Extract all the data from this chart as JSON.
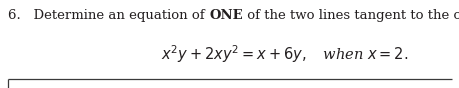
{
  "line1_pre": "6.   Determine an equation of ",
  "line1_bold": "ONE",
  "line1_post": " of the two lines tangent to the curve",
  "line2_math": "$x^2y + 2xy^2 = x + 6y,$   when $x = 2.$",
  "bg_color": "#ffffff",
  "text_color": "#231f20",
  "font_size_main": 9.5,
  "font_size_math": 10.5,
  "fig_width": 4.59,
  "fig_height": 0.88,
  "dpi": 100
}
